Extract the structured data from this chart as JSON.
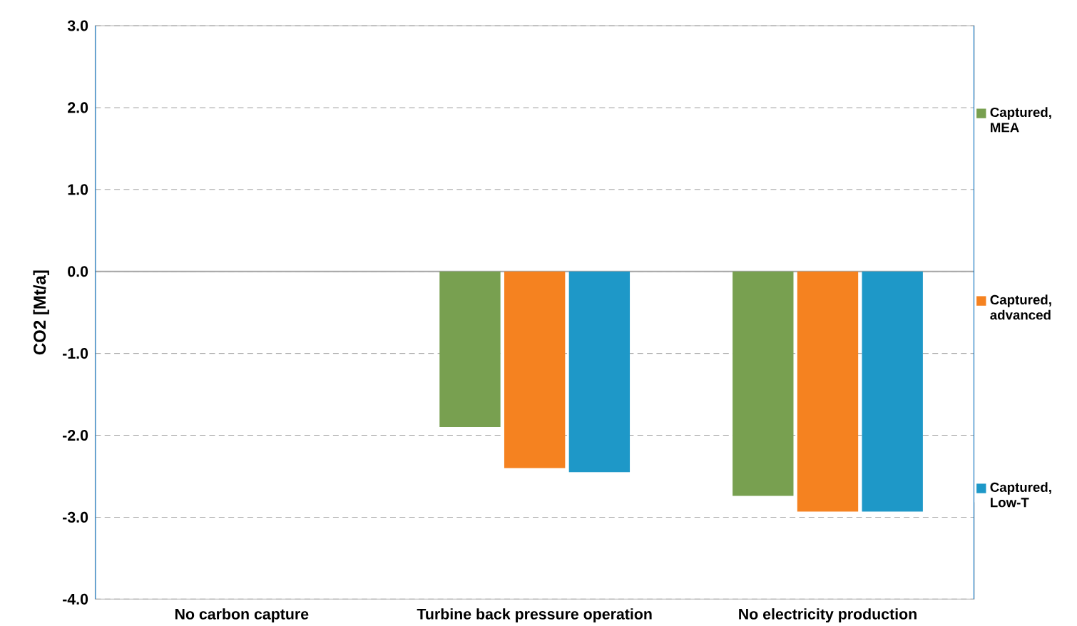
{
  "chart_data": {
    "type": "bar",
    "ylabel": "CO2 [Mt/a]",
    "categories": [
      "No carbon capture",
      "Turbine back pressure operation",
      "No electricity production"
    ],
    "series": [
      {
        "name": "Captured, MEA",
        "color": "#78a050",
        "values": [
          0,
          -1.9,
          -2.74
        ]
      },
      {
        "name": "Captured, advanced",
        "color": "#f58220",
        "values": [
          0,
          -2.4,
          -2.93
        ]
      },
      {
        "name": "Captured, Low-T",
        "color": "#1e98c8",
        "values": [
          0,
          -2.45,
          -2.93
        ]
      }
    ],
    "ylim": [
      -4,
      3
    ],
    "yticks": [
      {
        "value": -4,
        "label": "-4.0"
      },
      {
        "value": -3,
        "label": "-3.0"
      },
      {
        "value": -2,
        "label": "-2.0"
      },
      {
        "value": -1,
        "label": "-1.0"
      },
      {
        "value": 0,
        "label": "0.0"
      },
      {
        "value": 1,
        "label": "1.0"
      },
      {
        "value": 2,
        "label": "2.0"
      },
      {
        "value": 3,
        "label": "3.0"
      }
    ],
    "grid": "y",
    "legend": "right"
  }
}
